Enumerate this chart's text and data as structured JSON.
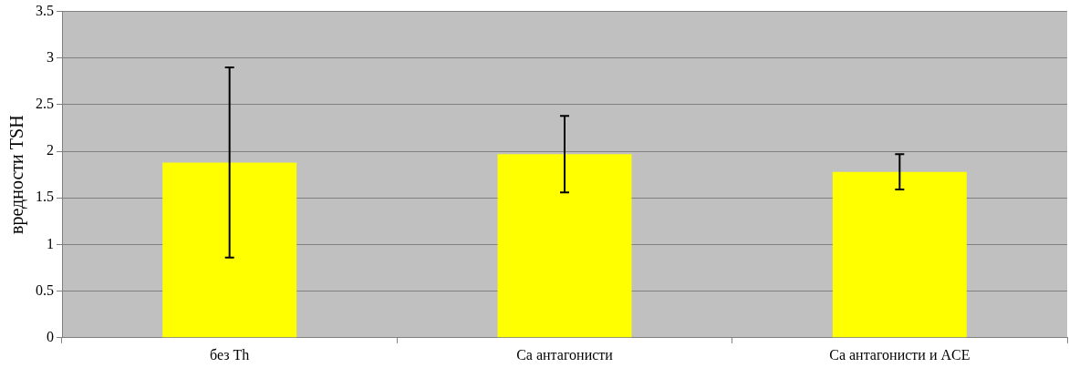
{
  "chart_data": {
    "type": "bar",
    "ylabel": "вредности TSH",
    "categories": [
      "без Th",
      "Ca антагонисти",
      "Ca антагонисти и ACE"
    ],
    "values": [
      1.88,
      1.97,
      1.78
    ],
    "errors": [
      1.02,
      0.41,
      0.19
    ],
    "color": "#ffff00",
    "ylim": [
      0,
      3.5
    ],
    "yticks": [
      0,
      0.5,
      1,
      1.5,
      2,
      2.5,
      3,
      3.5
    ],
    "grid": "y"
  }
}
